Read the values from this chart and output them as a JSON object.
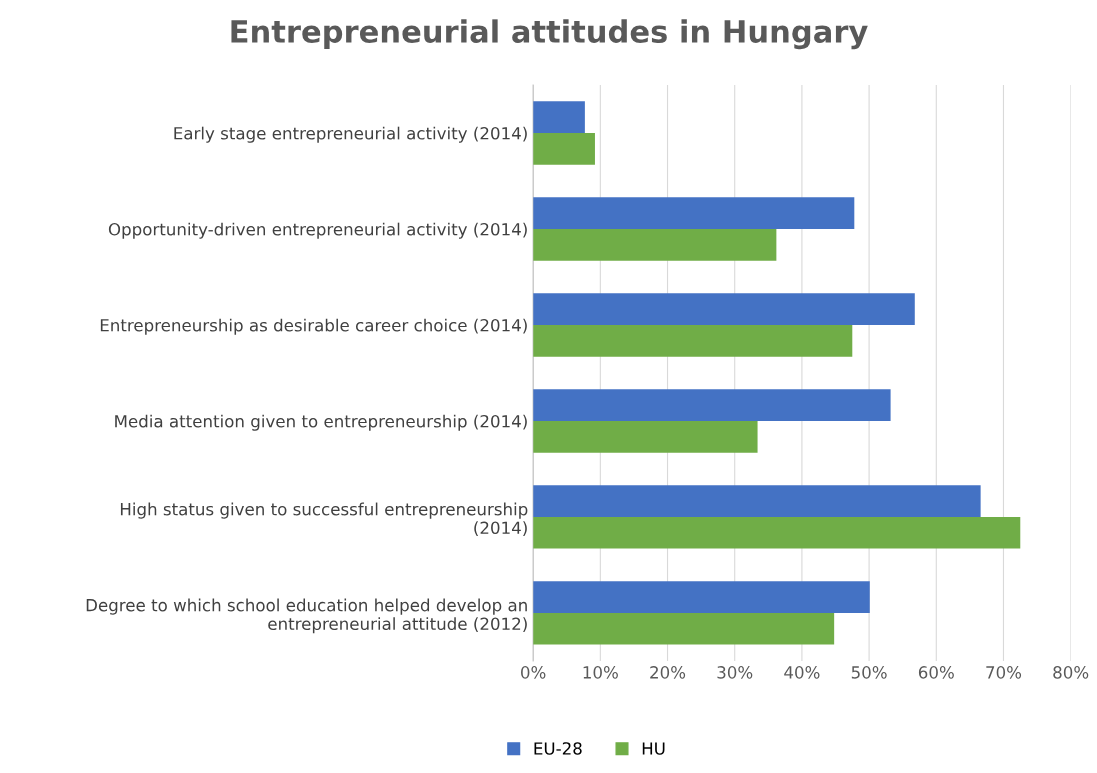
{
  "chart_data": {
    "type": "bar",
    "orientation": "horizontal",
    "title": "Entrepreneurial attitudes in Hungary",
    "categories": [
      "Early stage entrepreneurial activity (2014)",
      "Opportunity-driven entrepreneurial activity (2014)",
      "Entrepreneurship as desirable career choice (2014)",
      "Media attention given to entrepreneurship (2014)",
      "High status given to successful entrepreneurship\n(2014)",
      "Degree to which school education helped develop an\nentrepreneurial attitude (2012)"
    ],
    "series": [
      {
        "name": "EU-28",
        "color": "#4472c4",
        "values": [
          7.7,
          47.8,
          56.8,
          53.2,
          66.6,
          50.1
        ]
      },
      {
        "name": "HU",
        "color": "#70ad47",
        "values": [
          9.2,
          36.2,
          47.5,
          33.4,
          72.5,
          44.8
        ]
      }
    ],
    "xlim": [
      0,
      80
    ],
    "xticks": [
      {
        "value": 0,
        "label": "0%"
      },
      {
        "value": 10,
        "label": "10%"
      },
      {
        "value": 20,
        "label": "20%"
      },
      {
        "value": 30,
        "label": "30%"
      },
      {
        "value": 40,
        "label": "40%"
      },
      {
        "value": 50,
        "label": "50%"
      },
      {
        "value": 60,
        "label": "60%"
      },
      {
        "value": 70,
        "label": "70%"
      },
      {
        "value": 80,
        "label": "80%"
      }
    ],
    "grid": "x",
    "legend": "bottom"
  }
}
